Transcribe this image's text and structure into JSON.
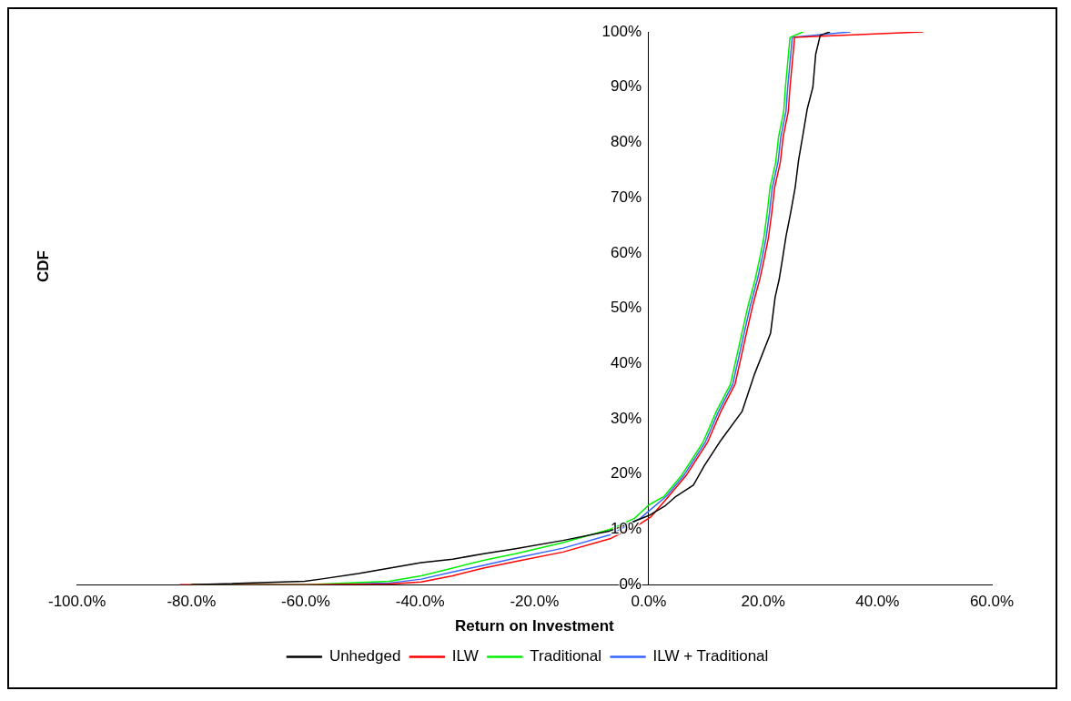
{
  "chart_data": {
    "type": "line",
    "xlabel": "Return on Investment",
    "ylabel": "CDF",
    "legend": "bottom",
    "marker": "none",
    "line_style": "solid",
    "xlim": [
      -100,
      60
    ],
    "ylim": [
      0,
      100
    ],
    "xticks": [
      {
        "value": -100,
        "label": "-100.0%"
      },
      {
        "value": -80,
        "label": "-80.0%"
      },
      {
        "value": -60,
        "label": "-60.0%"
      },
      {
        "value": -40,
        "label": "-40.0%"
      },
      {
        "value": -20,
        "label": "-20.0%"
      },
      {
        "value": 0,
        "label": "0.0%"
      },
      {
        "value": 20,
        "label": "20.0%"
      },
      {
        "value": 40,
        "label": "40.0%"
      },
      {
        "value": 60,
        "label": "60.0%"
      }
    ],
    "yticks": [
      {
        "value": 0,
        "label": "0%"
      },
      {
        "value": 10,
        "label": "10%"
      },
      {
        "value": 20,
        "label": "20%"
      },
      {
        "value": 30,
        "label": "30%"
      },
      {
        "value": 40,
        "label": "40%"
      },
      {
        "value": 50,
        "label": "50%"
      },
      {
        "value": 60,
        "label": "60%"
      },
      {
        "value": 70,
        "label": "70%"
      },
      {
        "value": 80,
        "label": "80%"
      },
      {
        "value": 90,
        "label": "90%"
      },
      {
        "value": 100,
        "label": "100%"
      }
    ],
    "series": [
      {
        "name": "Unhedged",
        "color": "#000000",
        "x": [
          -80,
          -75.6,
          -60.2,
          -57.4,
          -50.8,
          -39.8,
          -34.3,
          -28.9,
          -23.3,
          -15,
          -6.8,
          0,
          2.8,
          4.8,
          7.8,
          9.7,
          12.4,
          16.3,
          18.5,
          21.3,
          22.1,
          22.8,
          23.4,
          24,
          24.8,
          25.6,
          26.2,
          27,
          27.7,
          28.7,
          29.2,
          30,
          31.7
        ],
        "values": [
          0,
          0.1,
          0.6,
          1,
          2,
          4,
          4.6,
          5.6,
          6.5,
          8,
          9.7,
          12.5,
          14.2,
          16,
          18,
          21.5,
          25.8,
          31.3,
          38.1,
          45.5,
          52,
          55.2,
          59,
          63,
          67.2,
          71.8,
          76.8,
          81.6,
          86,
          90,
          96,
          99.4,
          100
        ]
      },
      {
        "name": "ILW",
        "color": "#ff0000",
        "x": [
          -82,
          -60,
          -45.4,
          -39.8,
          -34.3,
          -28.9,
          -23.3,
          -15,
          -6.8,
          -1.5,
          0.4,
          3.5,
          6.5,
          10.3,
          12.6,
          15.1,
          16.8,
          18.2,
          19.4,
          20.2,
          20.9,
          21.5,
          22,
          23,
          23.5,
          24.4,
          24.7,
          25.5,
          48
        ],
        "values": [
          0,
          0,
          0.1,
          0.5,
          1.6,
          3,
          4.2,
          5.9,
          8.3,
          11,
          12.3,
          16,
          19.7,
          25.8,
          31.3,
          36.3,
          44.2,
          50.6,
          55.2,
          59,
          62.6,
          67.2,
          71.8,
          76.4,
          81,
          85.6,
          90,
          99,
          100
        ]
      },
      {
        "name": "Traditional",
        "color": "#00ee00",
        "x": [
          -80,
          -60,
          -45.4,
          -39.8,
          -34.3,
          -28.9,
          -23.3,
          -15,
          -6.8,
          -2.5,
          0,
          2.7,
          5.7,
          9.5,
          11.8,
          14.3,
          16,
          17.4,
          18.6,
          19.4,
          20.1,
          20.7,
          21.2,
          22.2,
          22.7,
          23.6,
          23.9,
          24.7,
          27
        ],
        "values": [
          0,
          0,
          0.6,
          1.6,
          3,
          4.4,
          5.6,
          7.6,
          10,
          12,
          14.4,
          16,
          19.7,
          25.8,
          31.3,
          36.3,
          44.2,
          50.6,
          55.2,
          59,
          62.6,
          67.2,
          71.8,
          76.4,
          81,
          85.6,
          90,
          99,
          100
        ]
      },
      {
        "name": "ILW + Traditional",
        "color": "#3366ff",
        "x": [
          -80,
          -60,
          -45.4,
          -39.8,
          -34.3,
          -28.9,
          -23.3,
          -15,
          -6.8,
          -1.5,
          0,
          3.1,
          6.1,
          9.9,
          12.2,
          14.7,
          16.4,
          17.8,
          19,
          19.8,
          20.5,
          21.1,
          21.6,
          22.6,
          23.1,
          24,
          24.3,
          25.1,
          35.3
        ],
        "values": [
          0,
          0,
          0.3,
          1,
          2.3,
          3.5,
          4.8,
          6.6,
          9,
          12,
          13.3,
          16,
          19.7,
          25.8,
          31.3,
          36.3,
          44.2,
          50.6,
          55.2,
          59,
          62.6,
          67.2,
          71.8,
          76.4,
          81,
          85.6,
          90,
          99,
          100
        ]
      }
    ]
  }
}
